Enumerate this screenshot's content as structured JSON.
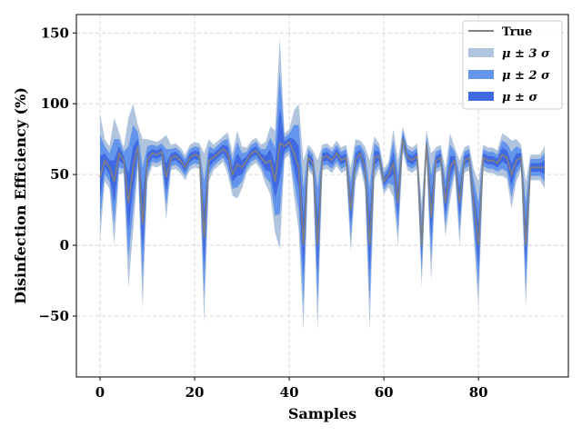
{
  "chart_data": {
    "type": "line",
    "xlabel": "Samples",
    "ylabel": "Disinfection Efficiency (%)",
    "xlim": [
      -5,
      99
    ],
    "ylim": [
      -93,
      163
    ],
    "xticks": [
      0,
      20,
      40,
      60,
      80
    ],
    "yticks": [
      -50,
      0,
      50,
      100,
      150
    ],
    "ytick_labels": [
      "−50",
      "0",
      "50",
      "100",
      "150"
    ],
    "grid": true,
    "legend_position": "top-right",
    "colors": {
      "true": "#808080",
      "band3": "#b0c4de",
      "band2": "#6495ed",
      "band1": "#4169e1"
    },
    "legend": [
      "True",
      "μ ± 3 σ",
      "μ ± 2 σ",
      "μ ±  σ"
    ],
    "true_values": [
      48,
      60,
      55,
      45,
      65,
      60,
      30,
      55,
      70,
      15,
      60,
      65,
      64,
      66,
      48,
      62,
      63,
      60,
      55,
      62,
      64,
      63,
      5,
      60,
      62,
      65,
      68,
      65,
      50,
      57,
      55,
      60,
      65,
      67,
      62,
      58,
      60,
      45,
      72,
      70,
      73,
      65,
      55,
      0,
      62,
      58,
      0,
      62,
      63,
      60,
      65,
      60,
      62,
      25,
      60,
      65,
      55,
      0,
      62,
      63,
      45,
      50,
      58,
      30,
      75,
      62,
      60,
      63,
      0,
      72,
      20,
      60,
      62,
      30,
      55,
      60,
      30,
      60,
      62,
      30,
      0,
      62,
      60,
      60,
      58,
      64,
      62,
      50,
      60,
      62,
      0,
      55,
      55,
      55,
      55
    ],
    "sigma": [
      15,
      5,
      5,
      15,
      5,
      3,
      20,
      15,
      5,
      20,
      5,
      3,
      3,
      3,
      10,
      3,
      3,
      3,
      3,
      3,
      3,
      3,
      20,
      5,
      3,
      3,
      3,
      5,
      5,
      8,
      5,
      3,
      3,
      3,
      3,
      5,
      8,
      12,
      25,
      3,
      3,
      10,
      15,
      20,
      3,
      3,
      20,
      3,
      3,
      3,
      3,
      3,
      3,
      10,
      5,
      3,
      5,
      20,
      5,
      3,
      3,
      3,
      8,
      10,
      3,
      3,
      3,
      3,
      10,
      3,
      15,
      3,
      3,
      8,
      8,
      3,
      10,
      3,
      3,
      8,
      15,
      3,
      3,
      3,
      3,
      5,
      5,
      8,
      5,
      3,
      15,
      3,
      3,
      3,
      5
    ]
  }
}
